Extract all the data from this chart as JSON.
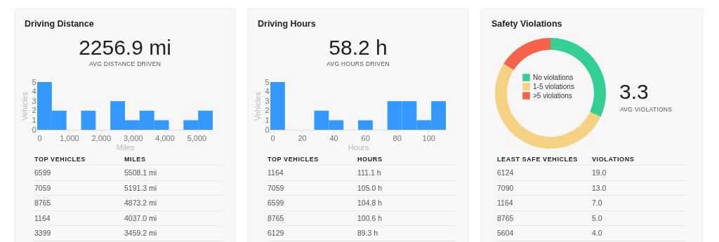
{
  "chart_data": [
    {
      "type": "histogram",
      "title": "Driving Distance",
      "xlabel": "Miles",
      "ylabel": "Vehicles",
      "color": "#3399ff",
      "bins": [
        0,
        459,
        918,
        1377,
        1836,
        2295,
        2754,
        3213,
        3672,
        4131,
        4590,
        5049,
        5508
      ],
      "values": [
        5,
        2,
        0,
        2,
        0,
        3,
        1,
        2,
        1,
        0,
        1,
        2
      ],
      "xlim": [
        0,
        5508
      ],
      "ylim": [
        0,
        5
      ],
      "xticks": [
        0,
        {
          "value": 1000,
          "label": "1,000"
        },
        {
          "value": 2000,
          "label": "2,000"
        },
        {
          "value": 3000,
          "label": "3,000"
        },
        {
          "value": 4000,
          "label": "4,000"
        },
        {
          "value": 5000,
          "label": "5,000"
        }
      ],
      "yticks": [
        0,
        1,
        2,
        3,
        4,
        5
      ],
      "annotations": [
        "2256.9 mi",
        "AVG DISTANCE DRIVEN",
        "TOP VEHICLES",
        "MILES",
        "6599",
        "5508.1 mi",
        "7059",
        "5191.3 mi",
        "8765",
        "4873.2 mi",
        "1164",
        "4037.0 mi",
        "3399",
        "3459.2 mi"
      ]
    },
    {
      "type": "histogram",
      "title": "Driving Hours",
      "xlabel": "Hours",
      "ylabel": "Vehicles",
      "color": "#3399ff",
      "bins": [
        0,
        9.25,
        18.5,
        27.75,
        37,
        46.25,
        55.5,
        64.75,
        74,
        83.25,
        92.5,
        101.75,
        111
      ],
      "values": [
        5,
        0,
        0,
        2,
        1,
        0,
        1,
        0,
        3,
        3,
        1,
        3
      ],
      "xlim": [
        0,
        111
      ],
      "ylim": [
        0,
        5
      ],
      "xticks": [
        0,
        20,
        40,
        60,
        80,
        100
      ],
      "yticks": [
        0,
        1,
        2,
        3,
        4,
        5
      ],
      "annotations": [
        "58.2 h",
        "AVG HOURS DRIVEN",
        "TOP VEHICLES",
        "HOURS",
        "1164",
        "111.1 h",
        "7059",
        "105.0 h",
        "6599",
        "104.8 h",
        "8765",
        "100.6 h",
        "6129",
        "89.3 h"
      ]
    },
    {
      "type": "donut",
      "title": "Safety Violations",
      "categories": [
        "No violations",
        "1-5 violations",
        ">5 violations"
      ],
      "values": [
        32,
        52,
        16
      ],
      "colors": [
        "#35cf94",
        "#f5d184",
        "#f7634a"
      ],
      "legend": "center",
      "annotations": [
        "3.3",
        "AVG VIOLATIONS",
        "LEAST SAFE VEHICLES",
        "VIOLATIONS",
        "6124",
        "19.0",
        "7090",
        "13.0",
        "1164",
        "7.0",
        "8765",
        "5.0",
        "5604",
        "4.0"
      ]
    }
  ]
}
